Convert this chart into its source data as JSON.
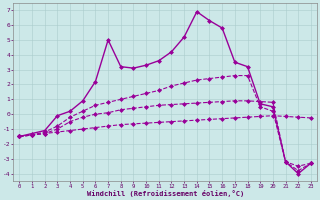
{
  "xlabel": "Windchill (Refroidissement éolien,°C)",
  "xlim": [
    -0.5,
    23.5
  ],
  "ylim": [
    -4.5,
    7.5
  ],
  "yticks": [
    -4,
    -3,
    -2,
    -1,
    0,
    1,
    2,
    3,
    4,
    5,
    6,
    7
  ],
  "xticks": [
    0,
    1,
    2,
    3,
    4,
    5,
    6,
    7,
    8,
    9,
    10,
    11,
    12,
    13,
    14,
    15,
    16,
    17,
    18,
    19,
    20,
    21,
    22,
    23
  ],
  "bg_color": "#cce8e8",
  "grid_color": "#aacccc",
  "line_color": "#990099",
  "series": [
    {
      "x": [
        0,
        1,
        2,
        3,
        4,
        5,
        6,
        7,
        8,
        9,
        10,
        11,
        12,
        13,
        14,
        15,
        16,
        17,
        18,
        19,
        20,
        21,
        22,
        23
      ],
      "y": [
        -1.5,
        -1.4,
        -1.3,
        -1.2,
        -1.1,
        -1.0,
        -0.9,
        -0.8,
        -0.7,
        -0.65,
        -0.6,
        -0.55,
        -0.5,
        -0.45,
        -0.4,
        -0.35,
        -0.3,
        -0.25,
        -0.2,
        -0.15,
        -0.1,
        -0.15,
        -0.2,
        -0.25
      ],
      "marker": "D",
      "markersize": 2,
      "linestyle": "--",
      "linewidth": 0.8
    },
    {
      "x": [
        0,
        1,
        2,
        3,
        4,
        5,
        6,
        7,
        8,
        9,
        10,
        11,
        12,
        13,
        14,
        15,
        16,
        17,
        18,
        19,
        20,
        21,
        22,
        23
      ],
      "y": [
        -1.5,
        -1.4,
        -1.3,
        -1.0,
        -0.5,
        -0.2,
        0.0,
        0.1,
        0.3,
        0.4,
        0.5,
        0.6,
        0.65,
        0.7,
        0.75,
        0.8,
        0.85,
        0.9,
        0.9,
        0.85,
        0.8,
        -3.2,
        -3.5,
        -3.3
      ],
      "marker": "D",
      "markersize": 2,
      "linestyle": "--",
      "linewidth": 0.8
    },
    {
      "x": [
        0,
        1,
        2,
        3,
        4,
        5,
        6,
        7,
        8,
        9,
        10,
        11,
        12,
        13,
        14,
        15,
        16,
        17,
        18,
        19,
        20,
        21,
        22,
        23
      ],
      "y": [
        -1.5,
        -1.4,
        -1.2,
        -0.8,
        -0.2,
        0.2,
        0.6,
        0.8,
        1.0,
        1.2,
        1.4,
        1.6,
        1.9,
        2.1,
        2.3,
        2.4,
        2.5,
        2.6,
        2.6,
        0.5,
        0.2,
        -3.2,
        -3.8,
        -3.3
      ],
      "marker": "D",
      "markersize": 2,
      "linestyle": "--",
      "linewidth": 0.8
    },
    {
      "x": [
        0,
        1,
        2,
        3,
        4,
        5,
        6,
        7,
        8,
        9,
        10,
        11,
        12,
        13,
        14,
        15,
        16,
        17,
        18,
        19,
        20,
        21,
        22,
        23
      ],
      "y": [
        -1.5,
        -1.3,
        -1.1,
        -0.1,
        0.2,
        0.9,
        2.2,
        5.0,
        3.2,
        3.1,
        3.3,
        3.6,
        4.2,
        5.2,
        6.9,
        6.3,
        5.8,
        3.5,
        3.2,
        0.7,
        0.5,
        -3.2,
        -4.0,
        -3.3
      ],
      "marker": "D",
      "markersize": 2,
      "linestyle": "-",
      "linewidth": 1.0
    }
  ]
}
